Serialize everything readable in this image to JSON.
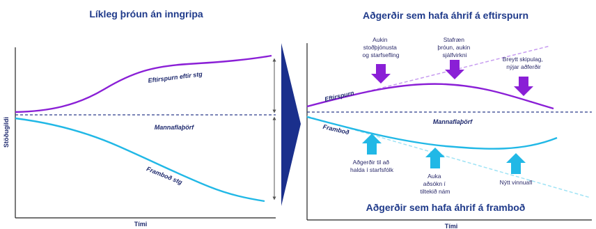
{
  "left_panel": {
    "title": "Líkleg þróun án inngripa",
    "y_axis_label": "Stöðugildi",
    "x_axis_label": "Tími",
    "demand_label": "Eftirspurn eftir stg",
    "staffing_need_label": "Mannaflaþörf",
    "supply_label": "Framboð stg"
  },
  "right_panel": {
    "title_top": "Aðgerðir sem hafa áhrif á eftirspurn",
    "title_bottom": "Aðgerðir sem hafa áhrif á framboð",
    "x_axis_label": "Tími",
    "demand_label": "Eftirspurn",
    "staffing_need_label": "Mannaflaþörf",
    "supply_label": "Framboð",
    "demand_actions": [
      {
        "lines": [
          "Aukin",
          "stoðþjónusta",
          "og starfsefling"
        ]
      },
      {
        "lines": [
          "Stafræn",
          "þróun, aukin",
          "sjálfvirkni"
        ]
      },
      {
        "lines": [
          "Breytt skipulag,",
          "nýjar aðferðir"
        ]
      }
    ],
    "supply_actions": [
      {
        "lines": [
          "Aðgerðir til að",
          "halda í starfsfólk"
        ]
      },
      {
        "lines": [
          "Auka",
          "aðsókn í",
          "tiltekið nám"
        ]
      },
      {
        "lines": [
          "Nýtt vinnuafl"
        ]
      }
    ]
  },
  "colors": {
    "title": "#1f3a8a",
    "demand": "#8a1fd6",
    "supply": "#21b8e6",
    "need": "#2a3a8a",
    "arrow_dark": "#1a2f8c"
  }
}
